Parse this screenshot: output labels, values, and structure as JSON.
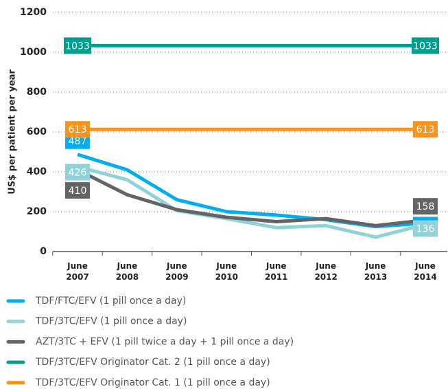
{
  "chart_data": {
    "type": "line",
    "y_label": "US$ per patient per year",
    "categories": [
      "June 2007",
      "June 2008",
      "June 2009",
      "June 2010",
      "June 2011",
      "June 2012",
      "June 2013",
      "June 2014"
    ],
    "ylim": [
      0,
      1200
    ],
    "yticks": [
      0,
      200,
      400,
      600,
      800,
      1000,
      1200
    ],
    "grid": true,
    "series": [
      {
        "name": "TDF/FTC/EFV (1 pill once a day)",
        "color": "#00aeef",
        "values": [
          487,
          410,
          260,
          200,
          183,
          160,
          125,
          143
        ]
      },
      {
        "name": "TDF/3TC/EFV (1 pill once a day)",
        "color": "#8fd3d8",
        "values": [
          426,
          360,
          205,
          165,
          120,
          130,
          72,
          136
        ]
      },
      {
        "name": "AZT/3TC + EFV (1 pill twice a day + 1 pill once a day)",
        "color": "#636466",
        "values": [
          410,
          285,
          210,
          172,
          150,
          165,
          130,
          158
        ]
      },
      {
        "name": "TDF/3TC/EFV Originator Cat. 2 (1 pill once a day)",
        "color": "#009e8e",
        "values": [
          1033,
          1033,
          1033,
          1033,
          1033,
          1033,
          1033,
          1033
        ]
      },
      {
        "name": "TDF/3TC/EFV Originator Cat. 1 (1 pill once a day)",
        "color": "#f7941d",
        "values": [
          613,
          613,
          613,
          613,
          613,
          613,
          613,
          613
        ]
      }
    ]
  }
}
